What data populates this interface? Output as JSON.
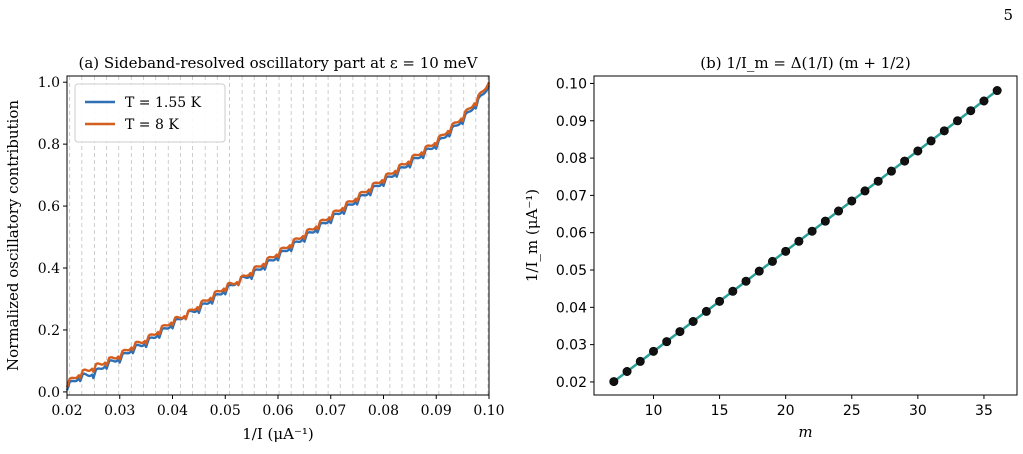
{
  "page_number": "5",
  "chart_data": [
    {
      "type": "line",
      "title": "(a) Sideband-resolved oscillatory part at ε = 10 meV",
      "xlabel": "1/I (μA⁻¹)",
      "ylabel": "Normalized oscillatory contribution",
      "xlim": [
        0.02,
        0.1
      ],
      "ylim": [
        -0.01,
        1.02
      ],
      "xticks": [
        "0.02",
        "0.03",
        "0.04",
        "0.05",
        "0.06",
        "0.07",
        "0.08",
        "0.09",
        "0.10"
      ],
      "yticks": [
        "0.0",
        "0.2",
        "0.4",
        "0.6",
        "0.8",
        "1.0"
      ],
      "grid": "vertical dashed lines at 1/I_m",
      "legend_position": "top-left",
      "series": [
        {
          "name": "T = 1.55 K",
          "color": "#2f6fb3",
          "x": [
            0.02,
            0.0225,
            0.025,
            0.0275,
            0.03,
            0.0325,
            0.035,
            0.0375,
            0.04,
            0.0425,
            0.045,
            0.0475,
            0.05,
            0.0525,
            0.055,
            0.0575,
            0.06,
            0.0625,
            0.065,
            0.0675,
            0.07,
            0.0725,
            0.075,
            0.0775,
            0.08,
            0.0825,
            0.085,
            0.0875,
            0.09,
            0.0925,
            0.095,
            0.0975,
            0.1
          ],
          "y": [
            0.02,
            0.05,
            0.06,
            0.09,
            0.11,
            0.14,
            0.16,
            0.19,
            0.22,
            0.25,
            0.27,
            0.3,
            0.33,
            0.36,
            0.38,
            0.41,
            0.44,
            0.47,
            0.5,
            0.53,
            0.56,
            0.59,
            0.62,
            0.65,
            0.68,
            0.71,
            0.74,
            0.77,
            0.8,
            0.84,
            0.88,
            0.93,
            0.99
          ]
        },
        {
          "name": "T = 8 K",
          "color": "#d45e1f",
          "x": [
            0.02,
            0.0225,
            0.025,
            0.0275,
            0.03,
            0.0325,
            0.035,
            0.0375,
            0.04,
            0.0425,
            0.045,
            0.0475,
            0.05,
            0.0525,
            0.055,
            0.0575,
            0.06,
            0.0625,
            0.065,
            0.0675,
            0.07,
            0.0725,
            0.075,
            0.0775,
            0.08,
            0.0825,
            0.085,
            0.0875,
            0.09,
            0.0925,
            0.095,
            0.0975,
            0.1
          ],
          "y": [
            0.03,
            0.06,
            0.08,
            0.1,
            0.12,
            0.15,
            0.17,
            0.2,
            0.23,
            0.25,
            0.28,
            0.31,
            0.34,
            0.36,
            0.39,
            0.42,
            0.45,
            0.48,
            0.51,
            0.54,
            0.57,
            0.6,
            0.63,
            0.66,
            0.69,
            0.72,
            0.75,
            0.78,
            0.81,
            0.85,
            0.89,
            0.94,
            1.0
          ]
        }
      ],
      "vlines_x": [
        0.0205,
        0.0228,
        0.0252,
        0.0275,
        0.0298,
        0.0322,
        0.0345,
        0.0368,
        0.0392,
        0.0415,
        0.0438,
        0.0462,
        0.0485,
        0.0508,
        0.0532,
        0.0555,
        0.0578,
        0.0602,
        0.0625,
        0.0648,
        0.0672,
        0.0695,
        0.0718,
        0.0742,
        0.0765,
        0.0788,
        0.0812,
        0.0835,
        0.0858,
        0.0882,
        0.0905,
        0.0928,
        0.0952,
        0.0975,
        0.0998
      ]
    },
    {
      "type": "scatter",
      "title": "(b) 1/I_m = Δ(1/I) (m + 1/2)",
      "xlabel": "m",
      "ylabel": "1/I_m (μA⁻¹)",
      "xlim": [
        5.5,
        37.5
      ],
      "ylim": [
        0.0165,
        0.102
      ],
      "xticks": [
        "10",
        "15",
        "20",
        "25",
        "30",
        "35"
      ],
      "yticks": [
        "0.02",
        "0.03",
        "0.04",
        "0.05",
        "0.06",
        "0.07",
        "0.08",
        "0.09",
        "0.10"
      ],
      "fit_line": {
        "color": "#2aa198",
        "x": [
          7,
          36
        ],
        "y": [
          0.0201,
          0.0981
        ]
      },
      "points": {
        "color": "#000000",
        "x": [
          7,
          8,
          9,
          10,
          11,
          12,
          13,
          14,
          15,
          16,
          17,
          18,
          19,
          20,
          21,
          22,
          23,
          24,
          25,
          26,
          27,
          28,
          29,
          30,
          31,
          32,
          33,
          34,
          35,
          36
        ],
        "y": [
          0.0201,
          0.0228,
          0.0255,
          0.0282,
          0.0308,
          0.0335,
          0.0362,
          0.0389,
          0.0416,
          0.0443,
          0.047,
          0.0497,
          0.0523,
          0.055,
          0.0577,
          0.0604,
          0.0631,
          0.0658,
          0.0685,
          0.0712,
          0.0738,
          0.0765,
          0.0792,
          0.0819,
          0.0846,
          0.0873,
          0.09,
          0.0927,
          0.0953,
          0.0981
        ]
      }
    }
  ]
}
